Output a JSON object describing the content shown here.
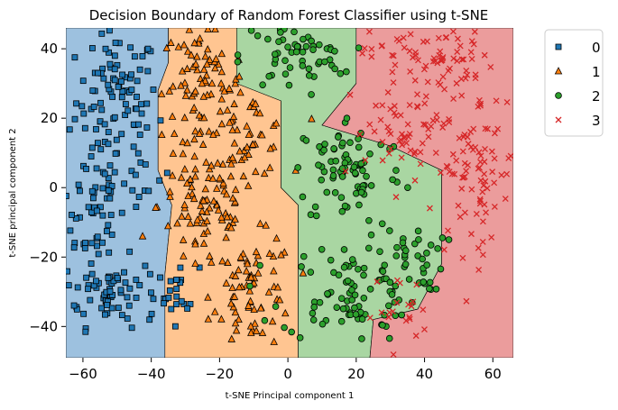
{
  "chart_data": {
    "type": "scatter",
    "title": "Decision Boundary of Random Forest Classifier using t-SNE",
    "xlabel": "t-SNE Principal component 1",
    "ylabel": "t-SNE principal component 2",
    "xlim": [
      -65,
      66
    ],
    "ylim": [
      -49,
      46
    ],
    "xticks": [
      -60,
      -40,
      -20,
      0,
      20,
      40,
      60
    ],
    "yticks": [
      -40,
      -20,
      0,
      20,
      40
    ],
    "grid": false,
    "legend_position": "top-right-outside",
    "colors": {
      "0": "#1f77b4",
      "1": "#ff7f0e",
      "2": "#2ca02c",
      "3": "#d62728",
      "region_0": "#9dc1df",
      "region_1": "#ffc591",
      "region_2": "#a9d6a2",
      "region_3": "#eb9c9c"
    },
    "regions": [
      {
        "class": "0",
        "polygon": [
          [
            -65,
            46
          ],
          [
            -35,
            46
          ],
          [
            -35,
            36
          ],
          [
            -38,
            28
          ],
          [
            -38,
            5
          ],
          [
            -34,
            -5
          ],
          [
            -36,
            -25
          ],
          [
            -36,
            -49
          ],
          [
            -65,
            -49
          ]
        ]
      },
      {
        "class": "1",
        "polygon": [
          [
            -35,
            46
          ],
          [
            -15,
            46
          ],
          [
            -15,
            30
          ],
          [
            -2,
            25
          ],
          [
            -2,
            0
          ],
          [
            3,
            -5
          ],
          [
            3,
            -49
          ],
          [
            -36,
            -49
          ],
          [
            -36,
            -25
          ],
          [
            -34,
            -5
          ],
          [
            -38,
            5
          ],
          [
            -38,
            28
          ],
          [
            -35,
            36
          ]
        ]
      },
      {
        "class": "2",
        "polygon": [
          [
            -15,
            46
          ],
          [
            20,
            46
          ],
          [
            20,
            30
          ],
          [
            10,
            18
          ],
          [
            30,
            12
          ],
          [
            45,
            5
          ],
          [
            45,
            -22
          ],
          [
            38,
            -35
          ],
          [
            25,
            -38
          ],
          [
            24,
            -49
          ],
          [
            3,
            -49
          ],
          [
            3,
            -5
          ],
          [
            -2,
            0
          ],
          [
            -2,
            25
          ],
          [
            -15,
            30
          ]
        ]
      },
      {
        "class": "3",
        "polygon": [
          [
            20,
            46
          ],
          [
            66,
            46
          ],
          [
            66,
            -49
          ],
          [
            24,
            -49
          ],
          [
            25,
            -38
          ],
          [
            38,
            -35
          ],
          [
            45,
            -22
          ],
          [
            45,
            5
          ],
          [
            30,
            12
          ],
          [
            10,
            18
          ],
          [
            20,
            30
          ]
        ]
      }
    ],
    "series": [
      {
        "name": "0",
        "marker": "square",
        "clusters": [
          {
            "cx": -50,
            "cy": 25,
            "sx": 6,
            "sy": 10,
            "n": 95
          },
          {
            "cx": -58,
            "cy": -5,
            "sx": 5,
            "sy": 10,
            "n": 55
          },
          {
            "cx": -52,
            "cy": -30,
            "sx": 7,
            "sy": 5,
            "n": 75
          },
          {
            "cx": -32,
            "cy": -30,
            "sx": 3,
            "sy": 4,
            "n": 18
          },
          {
            "cx": -42,
            "cy": 3,
            "sx": 4,
            "sy": 4,
            "n": 12
          }
        ]
      },
      {
        "name": "1",
        "marker": "triangle",
        "clusters": [
          {
            "cx": -25,
            "cy": 30,
            "sx": 6,
            "sy": 8,
            "n": 80
          },
          {
            "cx": -24,
            "cy": -5,
            "sx": 7,
            "sy": 10,
            "n": 90
          },
          {
            "cx": -10,
            "cy": -30,
            "sx": 6,
            "sy": 8,
            "n": 70
          },
          {
            "cx": -12,
            "cy": 15,
            "sx": 6,
            "sy": 6,
            "n": 45
          }
        ]
      },
      {
        "name": "2",
        "marker": "circle",
        "clusters": [
          {
            "cx": 2,
            "cy": 38,
            "sx": 8,
            "sy": 5,
            "n": 60
          },
          {
            "cx": 18,
            "cy": 5,
            "sx": 8,
            "sy": 8,
            "n": 80
          },
          {
            "cx": 18,
            "cy": -30,
            "sx": 10,
            "sy": 7,
            "n": 90
          },
          {
            "cx": 36,
            "cy": -20,
            "sx": 5,
            "sy": 5,
            "n": 30
          }
        ]
      },
      {
        "name": "3",
        "marker": "x",
        "clusters": [
          {
            "cx": 42,
            "cy": 38,
            "sx": 9,
            "sy": 5,
            "n": 70
          },
          {
            "cx": 37,
            "cy": 15,
            "sx": 9,
            "sy": 8,
            "n": 70
          },
          {
            "cx": 55,
            "cy": 5,
            "sx": 6,
            "sy": 12,
            "n": 80
          },
          {
            "cx": 33,
            "cy": -35,
            "sx": 4,
            "sy": 5,
            "n": 20
          }
        ]
      }
    ]
  }
}
